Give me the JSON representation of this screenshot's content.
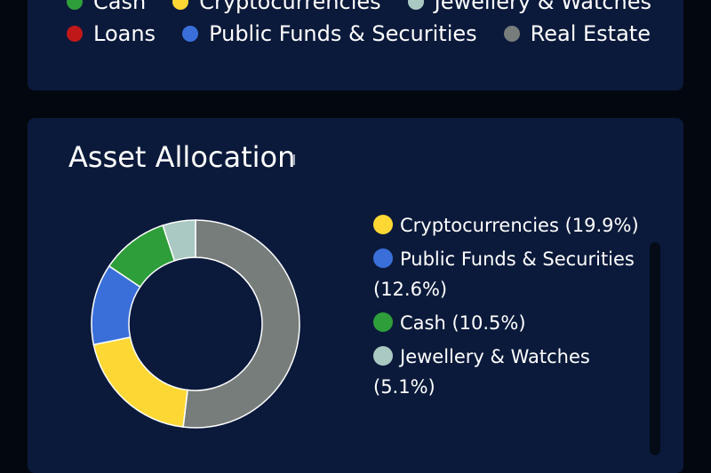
{
  "top_legend": {
    "row1": [
      {
        "label": "Cash",
        "color": "#2e9e3a"
      },
      {
        "label": "Cryptocurrencies",
        "color": "#fdd835"
      },
      {
        "label": "Jewellery & Watches",
        "color": "#a9c9c2"
      }
    ],
    "row2": [
      {
        "label": "Loans",
        "color": "#c01818"
      },
      {
        "label": "Public Funds & Securities",
        "color": "#3a6fd9"
      },
      {
        "label": "Real Estate",
        "color": "#777d7b"
      }
    ]
  },
  "asset_allocation": {
    "title": "Asset Allocation",
    "legend": [
      {
        "label": "Cryptocurrencies (19.9%)",
        "color": "#fdd835"
      },
      {
        "label": "Public Funds & Securities (12.6%)",
        "color": "#3a6fd9"
      },
      {
        "label": "Cash (10.5%)",
        "color": "#2e9e3a"
      },
      {
        "label": "Jewellery & Watches (5.1%)",
        "color": "#a9c9c2"
      }
    ]
  },
  "chart_data": {
    "type": "pie",
    "donut": true,
    "slices": [
      {
        "name": "Real Estate",
        "value": 51.9,
        "color": "#777d7b"
      },
      {
        "name": "Cryptocurrencies",
        "value": 19.9,
        "color": "#fdd835"
      },
      {
        "name": "Public Funds & Securities",
        "value": 12.6,
        "color": "#3a6fd9"
      },
      {
        "name": "Cash",
        "value": 10.5,
        "color": "#2e9e3a"
      },
      {
        "name": "Jewellery & Watches",
        "value": 5.1,
        "color": "#a9c9c2"
      }
    ]
  }
}
